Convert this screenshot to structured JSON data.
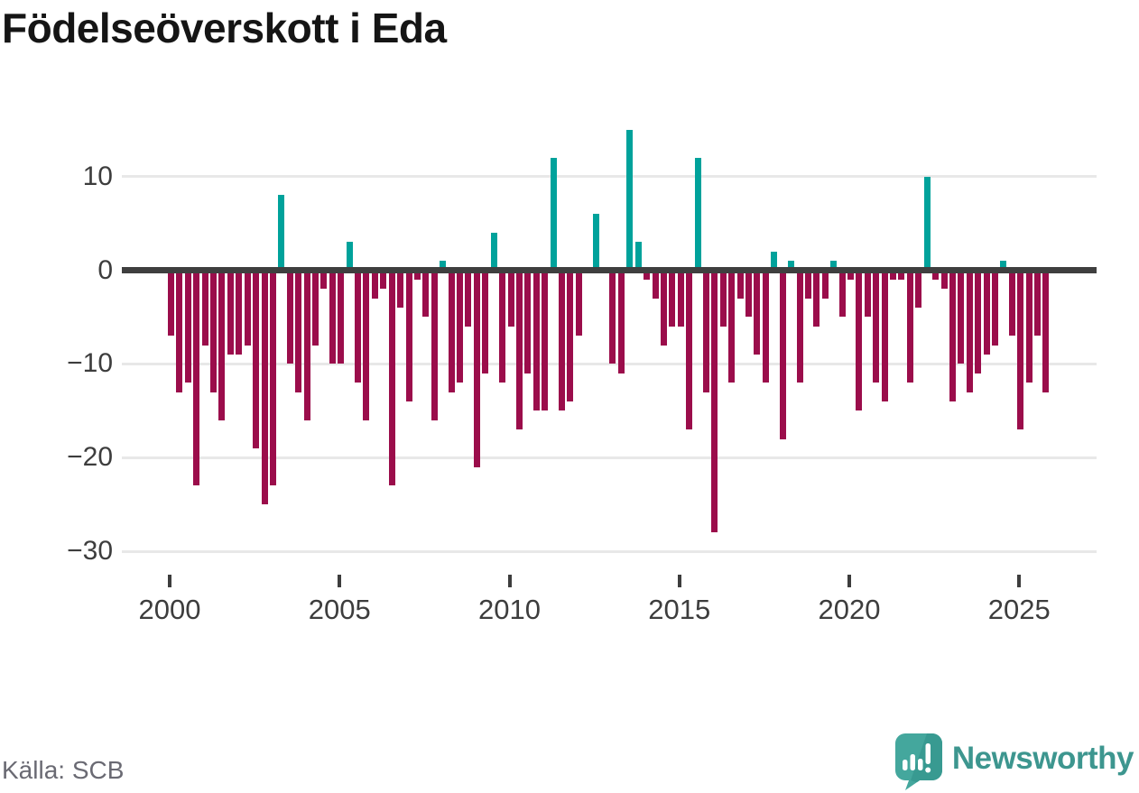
{
  "title": "Födelseöverskott i Eda",
  "source": "Källa: SCB",
  "branding": {
    "logo_text": "Newsworthy",
    "logo_icon": "newsworthy-speech-bubble-bar-chart-icon"
  },
  "colors": {
    "positive_bar": "#00a29b",
    "negative_bar": "#9b0d4b",
    "zero_line": "#3f3f3f",
    "gridline": "#e8e8e8",
    "axis_text": "#3d3d3d",
    "source_text": "#6a6a73",
    "title_text": "#151515",
    "logo_bubble": "#44a79d",
    "logo_bubble_shade": "#389a91",
    "logo_text_color": "#3d968f"
  },
  "chart_data": {
    "type": "bar",
    "title": "Födelseöverskott i Eda",
    "xlabel": "",
    "ylabel": "",
    "grid": true,
    "legend_position": "none",
    "ylim": [
      -31,
      16
    ],
    "y_axis": {
      "tick_values": [
        10,
        0,
        -10,
        -20,
        -30
      ],
      "tick_labels": [
        "10",
        "0",
        "−10",
        "−20",
        "−30"
      ]
    },
    "x_axis": {
      "tick_labels": [
        "2000",
        "2005",
        "2010",
        "2015",
        "2020",
        "2025"
      ],
      "tick_years": [
        2000,
        2005,
        2010,
        2015,
        2020,
        2025
      ]
    },
    "x": [
      "2000Q1",
      "2000Q2",
      "2000Q3",
      "2000Q4",
      "2001Q1",
      "2001Q2",
      "2001Q3",
      "2001Q4",
      "2002Q1",
      "2002Q2",
      "2002Q3",
      "2002Q4",
      "2003Q1",
      "2003Q2",
      "2003Q3",
      "2003Q4",
      "2004Q1",
      "2004Q2",
      "2004Q3",
      "2004Q4",
      "2005Q1",
      "2005Q2",
      "2005Q3",
      "2005Q4",
      "2006Q1",
      "2006Q2",
      "2006Q3",
      "2006Q4",
      "2007Q1",
      "2007Q2",
      "2007Q3",
      "2007Q4",
      "2008Q1",
      "2008Q2",
      "2008Q3",
      "2008Q4",
      "2009Q1",
      "2009Q2",
      "2009Q3",
      "2009Q4",
      "2010Q1",
      "2010Q2",
      "2010Q3",
      "2010Q4",
      "2011Q1",
      "2011Q2",
      "2011Q3",
      "2011Q4",
      "2012Q1",
      "2012Q2",
      "2012Q3",
      "2012Q4",
      "2013Q1",
      "2013Q2",
      "2013Q3",
      "2013Q4",
      "2014Q1",
      "2014Q2",
      "2014Q3",
      "2014Q4",
      "2015Q1",
      "2015Q2",
      "2015Q3",
      "2015Q4",
      "2016Q1",
      "2016Q2",
      "2016Q3",
      "2016Q4",
      "2017Q1",
      "2017Q2",
      "2017Q3",
      "2017Q4",
      "2018Q1",
      "2018Q2",
      "2018Q3",
      "2018Q4",
      "2019Q1",
      "2019Q2",
      "2019Q3",
      "2019Q4",
      "2020Q1",
      "2020Q2",
      "2020Q3",
      "2020Q4",
      "2021Q1",
      "2021Q2",
      "2021Q3",
      "2021Q4",
      "2022Q1",
      "2022Q2",
      "2022Q3",
      "2022Q4",
      "2023Q1",
      "2023Q2",
      "2023Q3",
      "2023Q4",
      "2024Q1",
      "2024Q2",
      "2024Q3",
      "2024Q4",
      "2025Q1",
      "2025Q2",
      "2025Q3",
      "2025Q4"
    ],
    "values": [
      -7,
      -13,
      -12,
      -23,
      -8,
      -13,
      -16,
      -9,
      -9,
      -8,
      -19,
      -25,
      -23,
      8,
      -10,
      -13,
      -16,
      -8,
      -2,
      -10,
      -10,
      3,
      -12,
      -16,
      -3,
      -2,
      -23,
      -4,
      -14,
      -1,
      -5,
      -16,
      1,
      -13,
      -12,
      -6,
      -21,
      -11,
      4,
      -12,
      -6,
      -17,
      -11,
      -15,
      -15,
      12,
      -15,
      -14,
      -7,
      0,
      6,
      0,
      -10,
      -11,
      15,
      3,
      -1,
      -3,
      -8,
      -6,
      -6,
      -17,
      12,
      -13,
      -28,
      -6,
      -12,
      -3,
      -5,
      -9,
      -12,
      2,
      -18,
      1,
      -12,
      -3,
      -6,
      -3,
      1,
      -5,
      -1,
      -15,
      -5,
      -12,
      -14,
      -1,
      -1,
      -12,
      -4,
      10,
      -1,
      -2,
      -14,
      -10,
      -13,
      -11,
      -9,
      -8,
      1,
      -7,
      -17,
      -12,
      -7,
      -13
    ]
  }
}
